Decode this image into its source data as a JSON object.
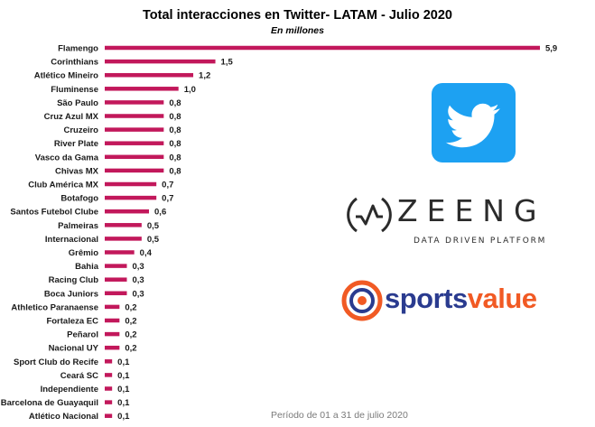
{
  "chart_data": {
    "type": "bar",
    "orientation": "horizontal",
    "title": "Total interacciones en Twitter- LATAM - Julio 2020",
    "subtitle": "En millones",
    "categories": [
      "Flamengo",
      "Corinthians",
      "Atlético Mineiro",
      "Fluminense",
      "São Paulo",
      "Cruz Azul MX",
      "Cruzeiro",
      "River Plate",
      "Vasco da Gama",
      "Chivas MX",
      "Club América MX",
      "Botafogo",
      "Santos Futebol Clube",
      "Palmeiras",
      "Internacional",
      "Grêmio",
      "Bahia",
      "Racing Club",
      "Boca Juniors",
      "Athletico Paranaense",
      "Fortaleza EC",
      "Peñarol",
      "Nacional UY",
      "Sport Club do Recife",
      "Ceará SC",
      "Independiente",
      "Barcelona de Guayaquil",
      "Atlético Nacional"
    ],
    "values": [
      5.9,
      1.5,
      1.2,
      1.0,
      0.8,
      0.8,
      0.8,
      0.8,
      0.8,
      0.8,
      0.7,
      0.7,
      0.6,
      0.5,
      0.5,
      0.4,
      0.3,
      0.3,
      0.3,
      0.2,
      0.2,
      0.2,
      0.2,
      0.1,
      0.1,
      0.1,
      0.1,
      0.1
    ],
    "value_labels": [
      "5,9",
      "1,5",
      "1,2",
      "1,0",
      "0,8",
      "0,8",
      "0,8",
      "0,8",
      "0,8",
      "0,8",
      "0,7",
      "0,7",
      "0,6",
      "0,5",
      "0,5",
      "0,4",
      "0,3",
      "0,3",
      "0,3",
      "0,2",
      "0,2",
      "0,2",
      "0,2",
      "0,1",
      "0,1",
      "0,1",
      "0,1",
      "0,1"
    ],
    "bar_color": "#c2185b",
    "grid": false,
    "legend": "none"
  },
  "logos": {
    "twitter": {
      "icon": "twitter-bird-icon",
      "color": "#1da1f2"
    },
    "zeeng": {
      "word": "ZEENG",
      "tagline": "DATA DRIVEN PLATFORM",
      "color": "#2b2b2b"
    },
    "sportsvalue": {
      "word_part1": "sports",
      "word_part2": "value",
      "color1": "#2a3b8f",
      "color2": "#f15a24"
    }
  },
  "footer": {
    "period": "Período de 01 a 31 de julio 2020"
  }
}
